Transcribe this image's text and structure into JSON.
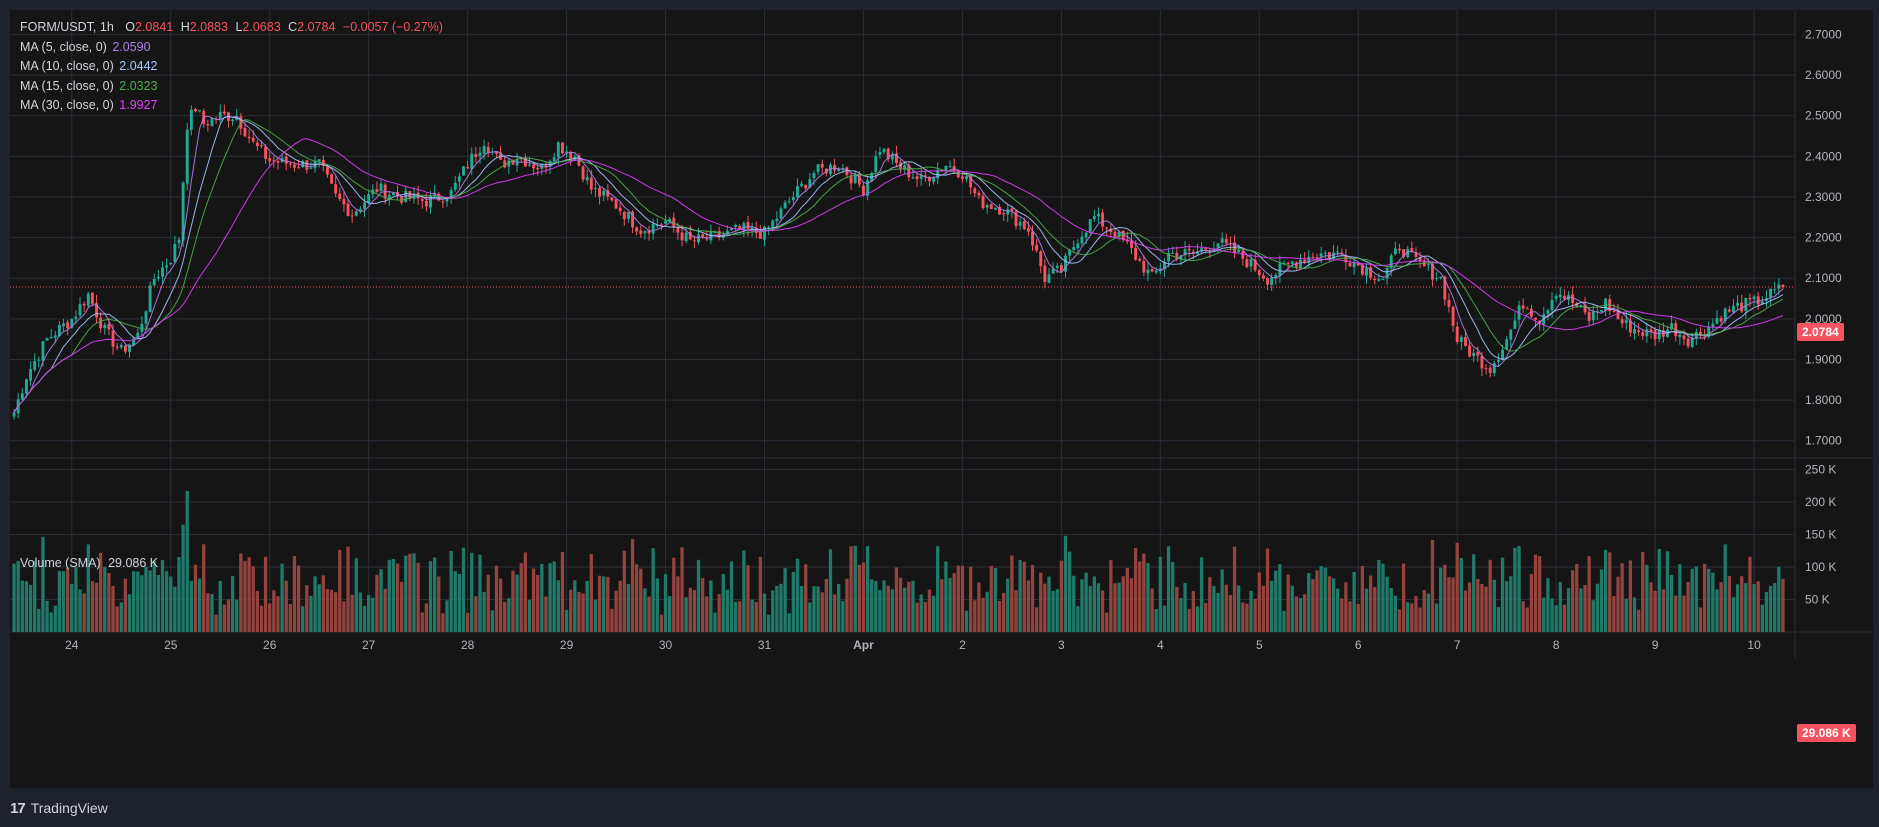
{
  "symbol": {
    "pair": "FORM/USDT",
    "interval": "1h",
    "open_label": "O",
    "open": "2.0841",
    "high_label": "H",
    "high": "2.0883",
    "low_label": "L",
    "low": "2.0683",
    "close_label": "C",
    "close": "2.0784",
    "change": "−0.0057 (−0.27%)"
  },
  "indicators": [
    {
      "label": "MA (5, close, 0)",
      "value": "2.0590",
      "color": "#b37feb"
    },
    {
      "label": "MA (10, close, 0)",
      "value": "2.0442",
      "color": "#a7c7ff"
    },
    {
      "label": "MA (15, close, 0)",
      "value": "2.0323",
      "color": "#4caf50"
    },
    {
      "label": "MA (30, close, 0)",
      "value": "1.9927",
      "color": "#e040fb"
    }
  ],
  "volume": {
    "label": "Volume (SMA)",
    "value": "29.086 K"
  },
  "last_price_tag": "2.0784",
  "last_volume_tag": "29.086 K",
  "brand": "TradingView",
  "colors": {
    "up": "#22ab94",
    "down": "#f7525f",
    "up_vol": "#1f7a6a",
    "down_vol": "#94433f",
    "grid": "#2a2e39",
    "text": "#b2b5be"
  },
  "chart_data": {
    "type": "candlestick",
    "price_axis": {
      "min": 1.66,
      "max": 2.76,
      "ticks": [
        "2.7000",
        "2.6000",
        "2.5000",
        "2.4000",
        "2.3000",
        "2.2000",
        "2.1000",
        "2.0000",
        "1.9000",
        "1.8000",
        "1.7000"
      ]
    },
    "volume_axis": {
      "min": 0,
      "max": 260000,
      "ticks": [
        "250 K",
        "200 K",
        "150 K",
        "100 K",
        "50 K"
      ]
    },
    "x_ticks": [
      "24",
      "25",
      "26",
      "27",
      "28",
      "29",
      "30",
      "31",
      "Apr",
      "2",
      "3",
      "4",
      "5",
      "6",
      "7",
      "8",
      "9",
      "10"
    ],
    "last_close": 2.0784,
    "anchors": [
      [
        0,
        1.77
      ],
      [
        3,
        1.86
      ],
      [
        8,
        1.95
      ],
      [
        14,
        2.0
      ],
      [
        18,
        2.06
      ],
      [
        22,
        1.97
      ],
      [
        26,
        1.92
      ],
      [
        30,
        1.96
      ],
      [
        34,
        2.1
      ],
      [
        38,
        2.15
      ],
      [
        40,
        2.2
      ],
      [
        42,
        2.48
      ],
      [
        44,
        2.52
      ],
      [
        46,
        2.48
      ],
      [
        50,
        2.5
      ],
      [
        54,
        2.5
      ],
      [
        58,
        2.43
      ],
      [
        62,
        2.39
      ],
      [
        68,
        2.38
      ],
      [
        74,
        2.38
      ],
      [
        78,
        2.3
      ],
      [
        82,
        2.26
      ],
      [
        88,
        2.32
      ],
      [
        94,
        2.3
      ],
      [
        100,
        2.29
      ],
      [
        106,
        2.31
      ],
      [
        110,
        2.38
      ],
      [
        114,
        2.44
      ],
      [
        118,
        2.38
      ],
      [
        122,
        2.4
      ],
      [
        128,
        2.37
      ],
      [
        132,
        2.43
      ],
      [
        136,
        2.4
      ],
      [
        140,
        2.32
      ],
      [
        146,
        2.28
      ],
      [
        152,
        2.22
      ],
      [
        158,
        2.24
      ],
      [
        164,
        2.19
      ],
      [
        170,
        2.2
      ],
      [
        176,
        2.22
      ],
      [
        182,
        2.21
      ],
      [
        188,
        2.29
      ],
      [
        194,
        2.36
      ],
      [
        200,
        2.38
      ],
      [
        206,
        2.32
      ],
      [
        210,
        2.42
      ],
      [
        214,
        2.38
      ],
      [
        220,
        2.34
      ],
      [
        226,
        2.38
      ],
      [
        230,
        2.36
      ],
      [
        234,
        2.29
      ],
      [
        240,
        2.27
      ],
      [
        246,
        2.22
      ],
      [
        250,
        2.1
      ],
      [
        254,
        2.12
      ],
      [
        258,
        2.2
      ],
      [
        262,
        2.25
      ],
      [
        266,
        2.22
      ],
      [
        270,
        2.18
      ],
      [
        276,
        2.1
      ],
      [
        280,
        2.16
      ],
      [
        286,
        2.16
      ],
      [
        292,
        2.19
      ],
      [
        298,
        2.15
      ],
      [
        304,
        2.1
      ],
      [
        310,
        2.14
      ],
      [
        316,
        2.16
      ],
      [
        322,
        2.16
      ],
      [
        328,
        2.12
      ],
      [
        332,
        2.1
      ],
      [
        336,
        2.18
      ],
      [
        340,
        2.14
      ],
      [
        346,
        2.1
      ],
      [
        350,
        1.95
      ],
      [
        354,
        1.91
      ],
      [
        358,
        1.88
      ],
      [
        362,
        1.95
      ],
      [
        366,
        2.04
      ],
      [
        370,
        2.0
      ],
      [
        374,
        2.07
      ],
      [
        378,
        2.04
      ],
      [
        382,
        2.0
      ],
      [
        386,
        2.04
      ],
      [
        390,
        1.99
      ],
      [
        394,
        1.97
      ],
      [
        398,
        1.96
      ],
      [
        402,
        1.98
      ],
      [
        406,
        1.95
      ],
      [
        410,
        1.97
      ],
      [
        414,
        2.01
      ],
      [
        418,
        2.03
      ],
      [
        422,
        2.04
      ],
      [
        426,
        2.06
      ],
      [
        429,
        2.0784
      ]
    ]
  }
}
